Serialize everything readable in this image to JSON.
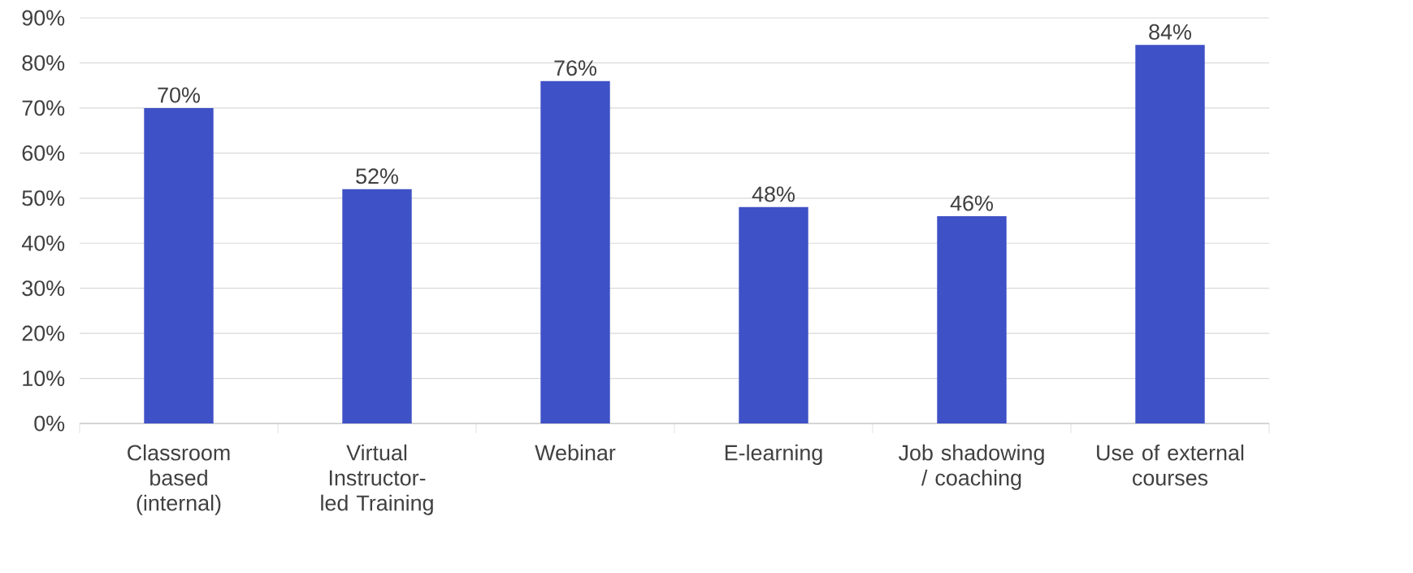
{
  "chart_data": {
    "type": "bar",
    "categories": [
      "Classroom based (internal)",
      "Virtual Instructor-led Training",
      "Webinar",
      "E-learning",
      "Job shadowing / coaching",
      "Use of external courses"
    ],
    "values": [
      70,
      52,
      76,
      48,
      46,
      84
    ],
    "value_labels": [
      "70%",
      "52%",
      "76%",
      "48%",
      "46%",
      "84%"
    ],
    "color": "#3f51c6",
    "ylim": [
      0,
      90
    ],
    "yticks": [
      {
        "value": 0,
        "label": "0%"
      },
      {
        "value": 10,
        "label": "10%"
      },
      {
        "value": 20,
        "label": "20%"
      },
      {
        "value": 30,
        "label": "30%"
      },
      {
        "value": 40,
        "label": "40%"
      },
      {
        "value": 50,
        "label": "50%"
      },
      {
        "value": 60,
        "label": "60%"
      },
      {
        "value": 70,
        "label": "70%"
      },
      {
        "value": 80,
        "label": "80%"
      },
      {
        "value": 90,
        "label": "90%"
      }
    ],
    "grid": "y"
  }
}
